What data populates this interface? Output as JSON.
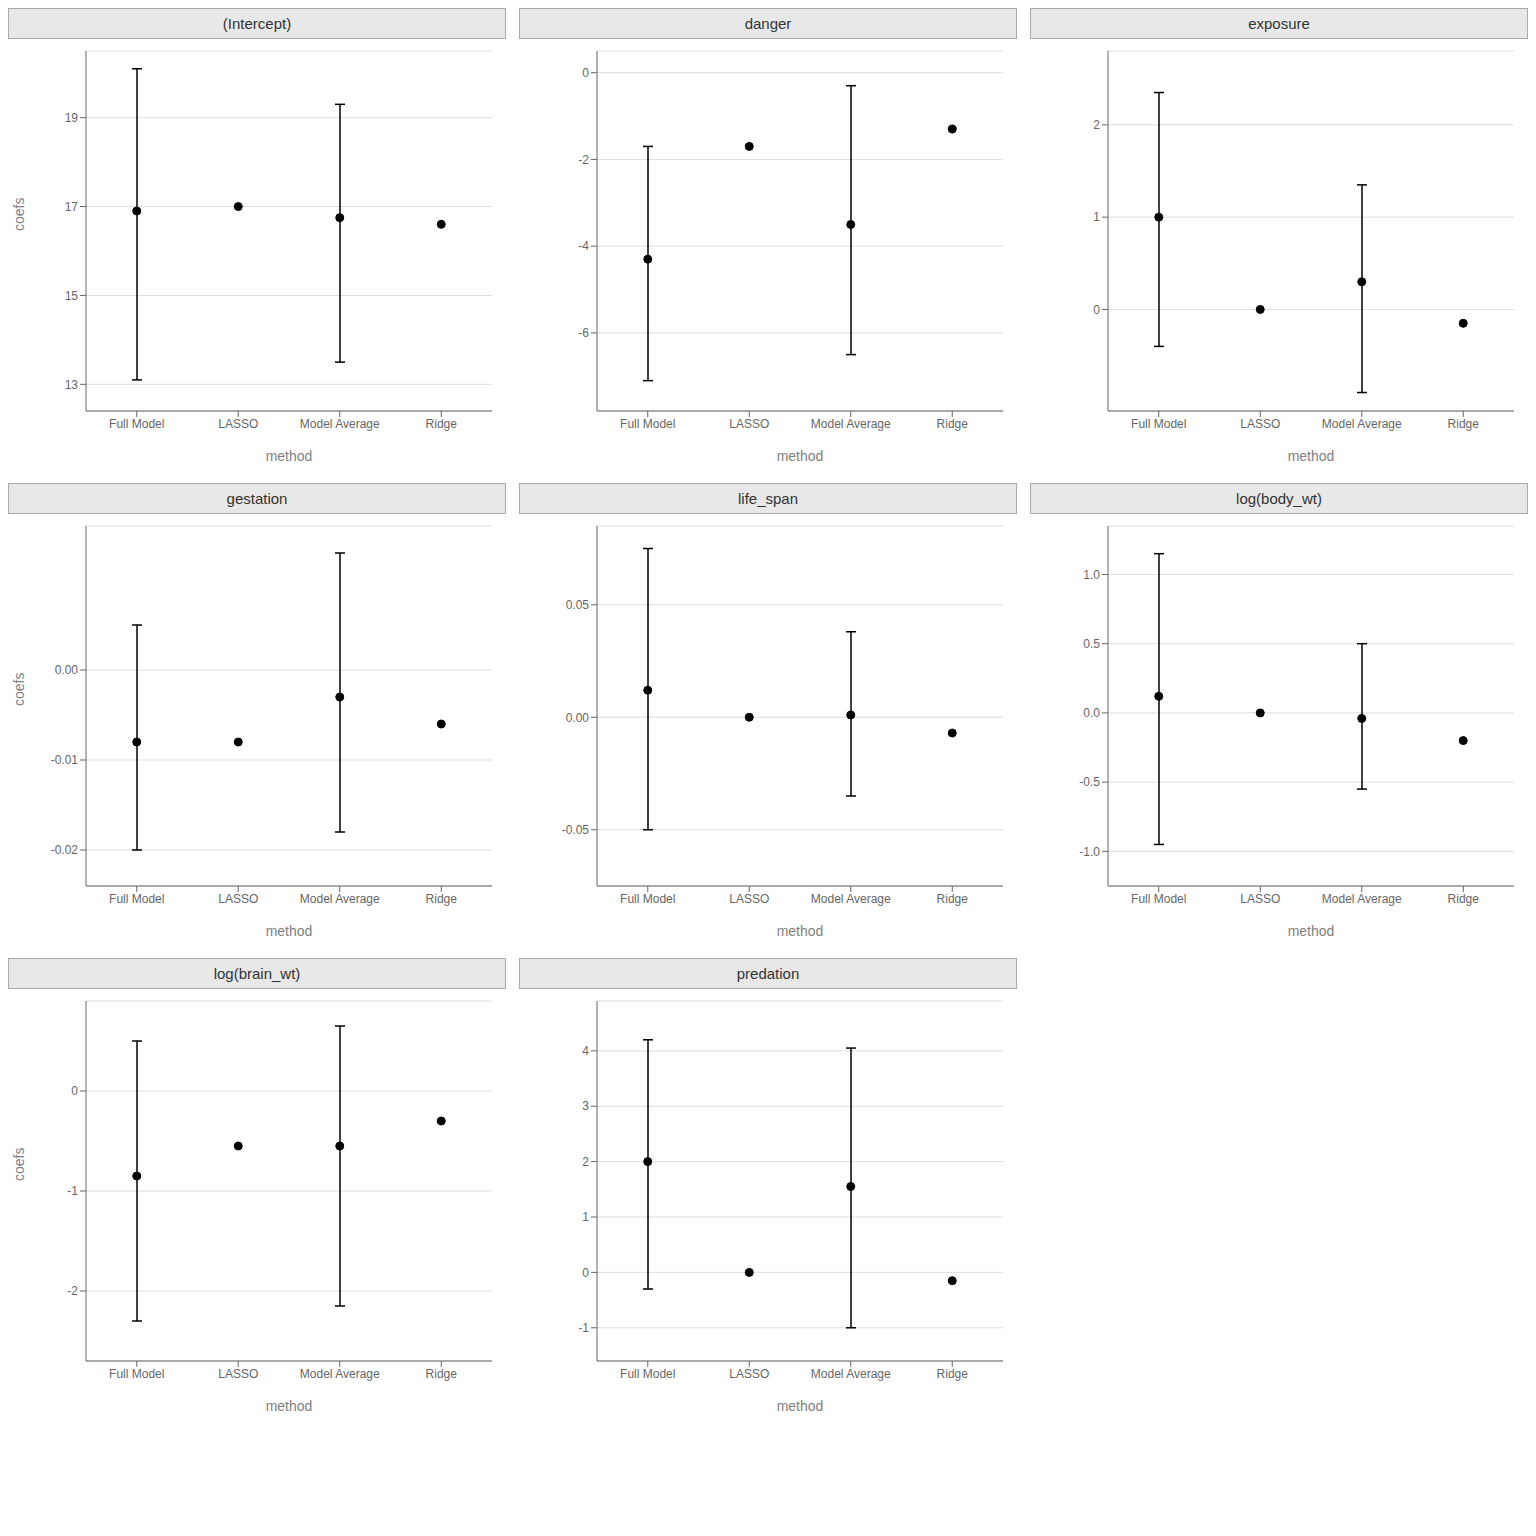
{
  "chart_data": [
    {
      "type": "scatter",
      "title": "(Intercept)",
      "categories": [
        "Full Model",
        "LASSO",
        "Model Average",
        "Ridge"
      ],
      "values": [
        16.9,
        17.0,
        16.75,
        16.6
      ],
      "lower": [
        13.1,
        null,
        13.5,
        null
      ],
      "upper": [
        20.1,
        null,
        19.3,
        null
      ],
      "color": "#000000",
      "ylim": [
        12.4,
        20.5
      ],
      "yticks": [
        13,
        15,
        17,
        19
      ],
      "grid": true,
      "x_label": "method",
      "y_label": "coefs"
    },
    {
      "type": "scatter",
      "title": "danger",
      "categories": [
        "Full Model",
        "LASSO",
        "Model Average",
        "Ridge"
      ],
      "values": [
        -4.3,
        -1.7,
        -3.5,
        -1.3
      ],
      "lower": [
        -7.1,
        null,
        -6.5,
        null
      ],
      "upper": [
        -1.7,
        null,
        -0.3,
        null
      ],
      "color": "#000000",
      "ylim": [
        -7.8,
        0.5
      ],
      "yticks": [
        -6,
        -4,
        -2,
        0
      ],
      "grid": true,
      "x_label": "method"
    },
    {
      "type": "scatter",
      "title": "exposure",
      "categories": [
        "Full Model",
        "LASSO",
        "Model Average",
        "Ridge"
      ],
      "values": [
        1.0,
        0.0,
        0.3,
        -0.15
      ],
      "lower": [
        -0.4,
        null,
        -0.9,
        null
      ],
      "upper": [
        2.35,
        null,
        1.35,
        null
      ],
      "color": "#000000",
      "ylim": [
        -1.1,
        2.8
      ],
      "yticks": [
        0,
        1,
        2
      ],
      "grid": true,
      "x_label": "method"
    },
    {
      "type": "scatter",
      "title": "gestation",
      "categories": [
        "Full Model",
        "LASSO",
        "Model Average",
        "Ridge"
      ],
      "values": [
        -0.008,
        -0.008,
        -0.003,
        -0.006
      ],
      "lower": [
        -0.02,
        null,
        -0.018,
        null
      ],
      "upper": [
        0.005,
        null,
        0.013,
        null
      ],
      "color": "#000000",
      "ylim": [
        -0.024,
        0.016
      ],
      "yticks": [
        -0.02,
        -0.01,
        {
          "value": 0,
          "label": "0.00"
        }
      ],
      "grid": true,
      "x_label": "method",
      "y_label": "coefs"
    },
    {
      "type": "scatter",
      "title": "life_span",
      "categories": [
        "Full Model",
        "LASSO",
        "Model Average",
        "Ridge"
      ],
      "values": [
        0.012,
        0.0,
        0.001,
        -0.007
      ],
      "lower": [
        -0.05,
        null,
        -0.035,
        null
      ],
      "upper": [
        0.075,
        null,
        0.038,
        null
      ],
      "color": "#000000",
      "ylim": [
        -0.075,
        0.085
      ],
      "yticks": [
        -0.05,
        {
          "value": 0,
          "label": "0.00"
        },
        0.05
      ],
      "grid": true,
      "x_label": "method"
    },
    {
      "type": "scatter",
      "title": "log(body_wt)",
      "categories": [
        "Full Model",
        "LASSO",
        "Model Average",
        "Ridge"
      ],
      "values": [
        0.12,
        0.0,
        -0.04,
        -0.2
      ],
      "lower": [
        -0.95,
        null,
        -0.55,
        null
      ],
      "upper": [
        1.15,
        null,
        0.5,
        null
      ],
      "color": "#000000",
      "ylim": [
        -1.25,
        1.35
      ],
      "yticks": [
        {
          "value": -1,
          "label": "-1.0"
        },
        -0.5,
        {
          "value": 0,
          "label": "0.0"
        },
        0.5,
        {
          "value": 1,
          "label": "1.0"
        }
      ],
      "grid": true,
      "x_label": "method"
    },
    {
      "type": "scatter",
      "title": "log(brain_wt)",
      "categories": [
        "Full Model",
        "LASSO",
        "Model Average",
        "Ridge"
      ],
      "values": [
        -0.85,
        -0.55,
        -0.55,
        -0.3
      ],
      "lower": [
        -2.3,
        null,
        -2.15,
        null
      ],
      "upper": [
        0.5,
        null,
        0.65,
        null
      ],
      "color": "#000000",
      "ylim": [
        -2.7,
        0.9
      ],
      "yticks": [
        -2,
        -1,
        0
      ],
      "grid": true,
      "x_label": "method",
      "y_label": "coefs"
    },
    {
      "type": "scatter",
      "title": "predation",
      "categories": [
        "Full Model",
        "LASSO",
        "Model Average",
        "Ridge"
      ],
      "values": [
        2.0,
        0.0,
        1.55,
        -0.15
      ],
      "lower": [
        -0.3,
        null,
        -1.0,
        null
      ],
      "upper": [
        4.2,
        null,
        4.05,
        null
      ],
      "color": "#000000",
      "ylim": [
        -1.6,
        4.9
      ],
      "yticks": [
        -1,
        0,
        1,
        2,
        3,
        4
      ],
      "grid": true,
      "x_label": "method"
    }
  ]
}
